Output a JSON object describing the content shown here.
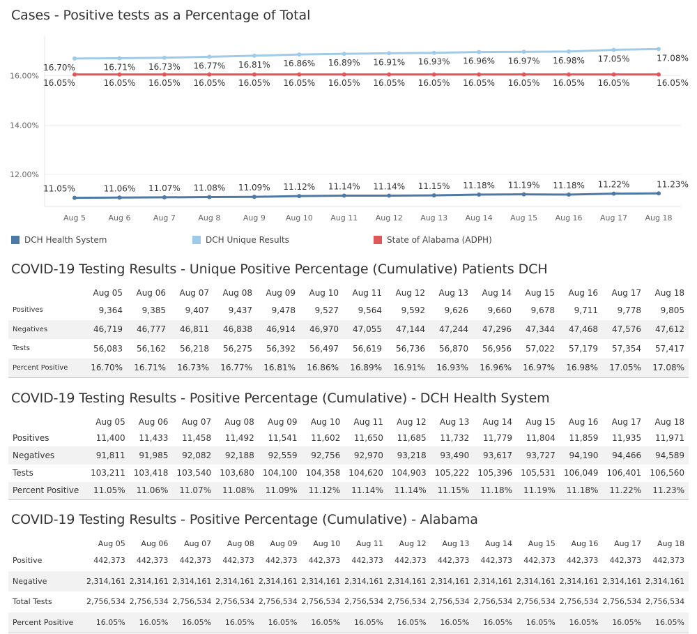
{
  "chart_title": "Cases - Positive tests as a Percentage of Total",
  "colors": {
    "dch_health_system": "#4e79a7",
    "dch_unique_results": "#a0cbe8",
    "state_of_alabama": "#e15759"
  },
  "chart_data": {
    "type": "line",
    "title": "Cases - Positive tests as a Percentage of Total",
    "categories": [
      "Aug 5",
      "Aug 6",
      "Aug 7",
      "Aug 8",
      "Aug 9",
      "Aug 10",
      "Aug 11",
      "Aug 12",
      "Aug 13",
      "Aug 14",
      "Aug 15",
      "Aug 16",
      "Aug 17",
      "Aug 18"
    ],
    "y_ticks": [
      "16.00%",
      "14.00%",
      "12.00%"
    ],
    "y_tick_values": [
      16,
      14,
      12
    ],
    "ylim": [
      10.7,
      17.6
    ],
    "grid": true,
    "legend_position": "bottom",
    "series": [
      {
        "name": "DCH Health System",
        "color": "#4e79a7",
        "values": [
          11.05,
          11.06,
          11.07,
          11.08,
          11.09,
          11.12,
          11.14,
          11.14,
          11.15,
          11.18,
          11.19,
          11.18,
          11.22,
          11.23
        ],
        "labels": [
          "11.05%",
          "11.06%",
          "11.07%",
          "11.08%",
          "11.09%",
          "11.12%",
          "11.14%",
          "11.14%",
          "11.15%",
          "11.18%",
          "11.19%",
          "11.18%",
          "11.22%",
          "11.23%"
        ]
      },
      {
        "name": "DCH Unique Results",
        "color": "#a0cbe8",
        "values": [
          16.7,
          16.71,
          16.73,
          16.77,
          16.81,
          16.86,
          16.89,
          16.91,
          16.93,
          16.96,
          16.97,
          16.98,
          17.05,
          17.08
        ],
        "labels": [
          "16.70%",
          "16.71%",
          "16.73%",
          "16.77%",
          "16.81%",
          "16.86%",
          "16.89%",
          "16.91%",
          "16.93%",
          "16.96%",
          "16.97%",
          "16.98%",
          "17.05%",
          "17.08%"
        ]
      },
      {
        "name": "State of Alabama (ADPH)",
        "color": "#e15759",
        "values": [
          16.05,
          16.05,
          16.05,
          16.05,
          16.05,
          16.05,
          16.05,
          16.05,
          16.05,
          16.05,
          16.05,
          16.05,
          16.05,
          16.05
        ],
        "labels": [
          "16.05%",
          "16.05%",
          "16.05%",
          "16.05%",
          "16.05%",
          "16.05%",
          "16.05%",
          "16.05%",
          "16.05%",
          "16.05%",
          "16.05%",
          "16.05%",
          "16.05%",
          "16.05%"
        ]
      }
    ]
  },
  "legend": [
    {
      "label": "DCH Health System",
      "color": "#4e79a7"
    },
    {
      "label": "DCH Unique Results",
      "color": "#a0cbe8"
    },
    {
      "label": "State of Alabama (ADPH)",
      "color": "#e15759"
    }
  ],
  "tables": [
    {
      "id": "unique",
      "title": "COVID-19 Testing Results - Unique Positive Percentage (Cumulative) Patients DCH",
      "columns": [
        "Aug 05",
        "Aug 06",
        "Aug 07",
        "Aug 08",
        "Aug 09",
        "Aug 10",
        "Aug 11",
        "Aug 12",
        "Aug 13",
        "Aug 14",
        "Aug 15",
        "Aug 16",
        "Aug 17",
        "Aug 18"
      ],
      "rows": [
        {
          "label": "Positives",
          "values": [
            "9,364",
            "9,385",
            "9,407",
            "9,437",
            "9,478",
            "9,527",
            "9,564",
            "9,592",
            "9,626",
            "9,660",
            "9,678",
            "9,711",
            "9,778",
            "9,805"
          ]
        },
        {
          "label": "Negatives",
          "values": [
            "46,719",
            "46,777",
            "46,811",
            "46,838",
            "46,914",
            "46,970",
            "47,055",
            "47,144",
            "47,244",
            "47,296",
            "47,344",
            "47,468",
            "47,576",
            "47,612"
          ]
        },
        {
          "label": "Tests",
          "values": [
            "56,083",
            "56,162",
            "56,218",
            "56,275",
            "56,392",
            "56,497",
            "56,619",
            "56,736",
            "56,870",
            "56,956",
            "57,022",
            "57,179",
            "57,354",
            "57,417"
          ]
        },
        {
          "label": "Percent Positive",
          "values": [
            "16.70%",
            "16.71%",
            "16.73%",
            "16.77%",
            "16.81%",
            "16.86%",
            "16.89%",
            "16.91%",
            "16.93%",
            "16.96%",
            "16.97%",
            "16.98%",
            "17.05%",
            "17.08%"
          ]
        }
      ]
    },
    {
      "id": "dch",
      "title": "COVID-19 Testing Results - Positive Percentage (Cumulative) - DCH Health System",
      "columns": [
        "Aug 05",
        "Aug 06",
        "Aug 07",
        "Aug 08",
        "Aug 09",
        "Aug 10",
        "Aug 11",
        "Aug 12",
        "Aug 13",
        "Aug 14",
        "Aug 15",
        "Aug 16",
        "Aug 17",
        "Aug 18"
      ],
      "rows": [
        {
          "label": "Positives",
          "values": [
            "11,400",
            "11,433",
            "11,458",
            "11,492",
            "11,541",
            "11,602",
            "11,650",
            "11,685",
            "11,732",
            "11,779",
            "11,804",
            "11,859",
            "11,935",
            "11,971"
          ]
        },
        {
          "label": "Negatives",
          "values": [
            "91,811",
            "91,985",
            "92,082",
            "92,188",
            "92,559",
            "92,756",
            "92,970",
            "93,218",
            "93,490",
            "93,617",
            "93,727",
            "94,190",
            "94,466",
            "94,589"
          ]
        },
        {
          "label": "Tests",
          "values": [
            "103,211",
            "103,418",
            "103,540",
            "103,680",
            "104,100",
            "104,358",
            "104,620",
            "104,903",
            "105,222",
            "105,396",
            "105,531",
            "106,049",
            "106,401",
            "106,560"
          ]
        },
        {
          "label": "Percent Positive",
          "values": [
            "11.05%",
            "11.06%",
            "11.07%",
            "11.08%",
            "11.09%",
            "11.12%",
            "11.14%",
            "11.14%",
            "11.15%",
            "11.18%",
            "11.19%",
            "11.18%",
            "11.22%",
            "11.23%"
          ]
        }
      ]
    },
    {
      "id": "alabama",
      "title": "COVID-19 Testing Results - Positive Percentage (Cumulative) - Alabama",
      "columns": [
        "Aug 05",
        "Aug 06",
        "Aug 07",
        "Aug 08",
        "Aug 09",
        "Aug 10",
        "Aug 11",
        "Aug 12",
        "Aug 13",
        "Aug 14",
        "Aug 15",
        "Aug 16",
        "Aug 17",
        "Aug 18"
      ],
      "rows": [
        {
          "label": "Positive",
          "values": [
            "442,373",
            "442,373",
            "442,373",
            "442,373",
            "442,373",
            "442,373",
            "442,373",
            "442,373",
            "442,373",
            "442,373",
            "442,373",
            "442,373",
            "442,373",
            "442,373"
          ]
        },
        {
          "label": "Negative",
          "values": [
            "2,314,161",
            "2,314,161",
            "2,314,161",
            "2,314,161",
            "2,314,161",
            "2,314,161",
            "2,314,161",
            "2,314,161",
            "2,314,161",
            "2,314,161",
            "2,314,161",
            "2,314,161",
            "2,314,161",
            "2,314,161"
          ]
        },
        {
          "label": "Total Tests",
          "values": [
            "2,756,534",
            "2,756,534",
            "2,756,534",
            "2,756,534",
            "2,756,534",
            "2,756,534",
            "2,756,534",
            "2,756,534",
            "2,756,534",
            "2,756,534",
            "2,756,534",
            "2,756,534",
            "2,756,534",
            "2,756,534"
          ]
        },
        {
          "label": "Percent Positive",
          "values": [
            "16.05%",
            "16.05%",
            "16.05%",
            "16.05%",
            "16.05%",
            "16.05%",
            "16.05%",
            "16.05%",
            "16.05%",
            "16.05%",
            "16.05%",
            "16.05%",
            "16.05%",
            "16.05%"
          ]
        }
      ]
    }
  ]
}
